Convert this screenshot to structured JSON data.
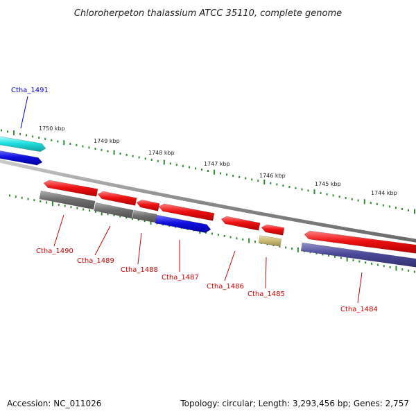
{
  "title": "Chloroherpeton thalassium ATCC 35110, complete genome",
  "footer": {
    "accession": "Accession: NC_011026",
    "summary": "Topology: circular; Length: 3,293,456 bp; Genes: 2,757"
  },
  "ruler_labels": [
    "1750 kbp",
    "1749 kbp",
    "1748 kbp",
    "1747 kbp",
    "1746 kbp",
    "1745 kbp",
    "1744 kbp"
  ],
  "colors": {
    "backbone": "#8a8a8a",
    "tick": "#2e8b2e",
    "red": "#ee1111",
    "grey": "#707070",
    "blue": "#1010e0",
    "cyan": "#20e0e0",
    "khaki": "#c8b870",
    "slate": "#4a4a9a",
    "label_blue": "#0000cc",
    "label_red": "#cc0000"
  },
  "genes": [
    {
      "name": "Ctha_1491",
      "label_color": "label_blue"
    },
    {
      "name": "Ctha_1490",
      "label_color": "label_red"
    },
    {
      "name": "Ctha_1489",
      "label_color": "label_red"
    },
    {
      "name": "Ctha_1488",
      "label_color": "label_red"
    },
    {
      "name": "Ctha_1487",
      "label_color": "label_red"
    },
    {
      "name": "Ctha_1486",
      "label_color": "label_red"
    },
    {
      "name": "Ctha_1485",
      "label_color": "label_red"
    },
    {
      "name": "Ctha_1484",
      "label_color": "label_red"
    }
  ]
}
